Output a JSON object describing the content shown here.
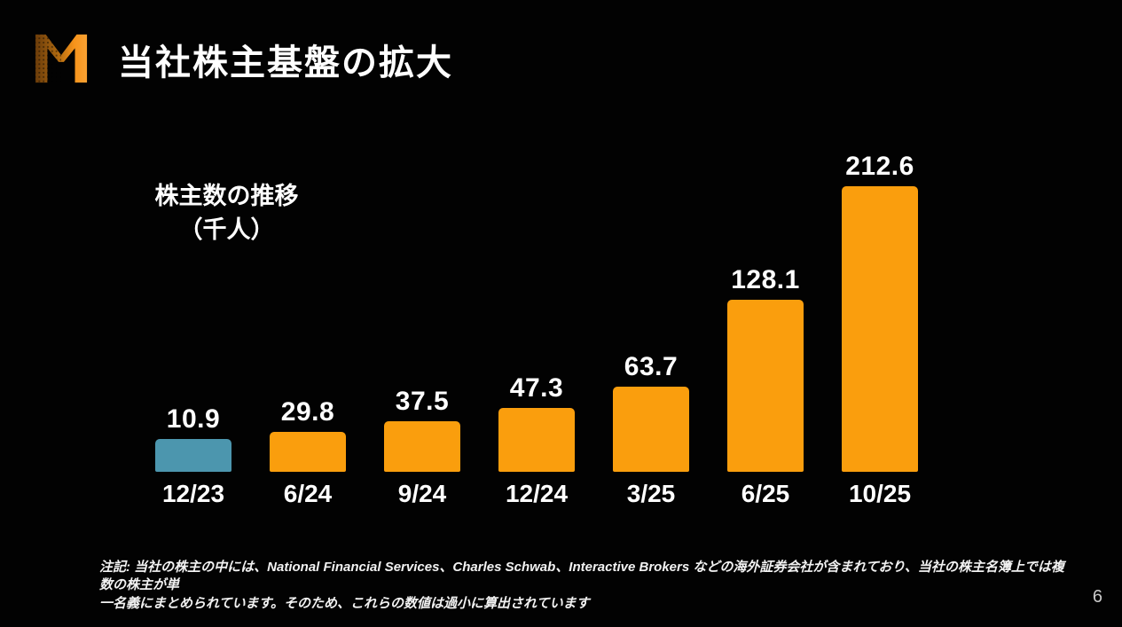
{
  "header": {
    "title": "当社株主基盤の拡大",
    "logo_name": "metaplanet-m-logo"
  },
  "chart": {
    "label_line1": "株主数の推移",
    "label_line2": "（千人）"
  },
  "chart_data": {
    "type": "bar",
    "title": "株主数の推移（千人）",
    "categories": [
      "12/23",
      "6/24",
      "9/24",
      "12/24",
      "3/25",
      "6/25",
      "10/25"
    ],
    "values": [
      10.9,
      29.8,
      37.5,
      47.3,
      63.7,
      128.1,
      212.6
    ],
    "bar_colors": [
      "#4c96ae",
      "#fa9e0d",
      "#fa9e0d",
      "#fa9e0d",
      "#fa9e0d",
      "#fa9e0d",
      "#fa9e0d"
    ],
    "xlabel": "",
    "ylabel": "株主数（千人）",
    "ylim": [
      0,
      230
    ],
    "grid": false,
    "legend": "none",
    "data_labels": true,
    "background": "#020202",
    "text_color": "#ffffff"
  },
  "colors": {
    "accent_orange": "#fa9e0d",
    "highlight_blue": "#4c96ae",
    "background": "#020202",
    "text": "#ffffff",
    "page_number": "#c9c9c9"
  },
  "footnote": {
    "line1": "注記: 当社の株主の中には、National Financial Services、Charles Schwab、Interactive Brokers などの海外証券会社が含まれており、当社の株主名簿上では複数の株主が単",
    "line2": "一名義にまとめられています。そのため、これらの数値は過小に算出されています"
  },
  "page_number": "6"
}
